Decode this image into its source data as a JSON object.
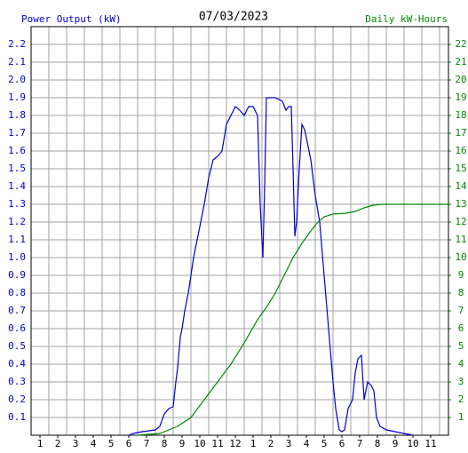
{
  "chart_data": {
    "type": "line",
    "title": "07/03/2023",
    "y_label": "Power Output (kW)",
    "y2_label": "Daily kW-Hours",
    "xlim": [
      0.5,
      24
    ],
    "xticks": [
      1,
      2,
      3,
      4,
      5,
      6,
      7,
      8,
      9,
      10,
      11,
      12,
      {
        "value": 13,
        "label": "1"
      },
      {
        "value": 14,
        "label": "2"
      },
      {
        "value": 15,
        "label": "3"
      },
      {
        "value": 16,
        "label": "4"
      },
      {
        "value": 17,
        "label": "5"
      },
      {
        "value": 18,
        "label": "6"
      },
      {
        "value": 19,
        "label": "7"
      },
      {
        "value": 20,
        "label": "8"
      },
      {
        "value": 21,
        "label": "9"
      },
      {
        "value": 22,
        "label": "10"
      },
      {
        "value": 23,
        "label": "11"
      }
    ],
    "ylim": [
      0,
      2.3
    ],
    "yticks": [
      0.1,
      0.2,
      0.3,
      0.4,
      0.5,
      0.6,
      0.7,
      0.8,
      0.9,
      {
        "value": 1,
        "label": "1.0"
      },
      1.1,
      1.2,
      1.3,
      1.4,
      1.5,
      1.6,
      1.7,
      1.8,
      1.9,
      {
        "value": 2,
        "label": "2.0"
      },
      2.1,
      2.2
    ],
    "y2lim": [
      0,
      23
    ],
    "y2ticks": [
      1,
      2,
      3,
      4,
      5,
      6,
      7,
      8,
      9,
      10,
      11,
      12,
      13,
      14,
      15,
      16,
      17,
      18,
      19,
      20,
      21,
      22
    ],
    "grid": true,
    "series": [
      {
        "color": "#0000cc",
        "x": [
          6.0,
          6.25,
          6.75,
          7.5,
          7.75,
          8.0,
          8.25,
          8.5,
          8.65,
          8.75,
          8.9,
          9.0,
          9.15,
          9.35,
          9.5,
          9.65,
          9.85,
          10.05,
          10.25,
          10.5,
          10.75,
          11.0,
          11.25,
          11.5,
          11.75,
          12.0,
          12.25,
          12.5,
          12.75,
          13.0,
          13.25,
          13.4,
          13.55,
          13.65,
          13.75,
          14.0,
          14.25,
          14.65,
          14.85,
          15.0,
          15.15,
          15.25,
          15.35,
          15.45,
          15.6,
          15.75,
          15.9,
          16.05,
          16.25,
          16.5,
          16.75,
          17.0,
          17.25,
          17.5,
          17.65,
          17.85,
          18.0,
          18.15,
          18.35,
          18.6,
          18.75,
          18.9,
          19.1,
          19.25,
          19.45,
          19.65,
          19.8,
          19.95,
          20.15,
          20.5,
          21.0,
          21.5,
          22.0
        ],
        "values": [
          0,
          0.01,
          0.02,
          0.03,
          0.05,
          0.12,
          0.15,
          0.16,
          0.3,
          0.38,
          0.55,
          0.6,
          0.7,
          0.8,
          0.9,
          1.0,
          1.1,
          1.2,
          1.3,
          1.45,
          1.55,
          1.57,
          1.6,
          1.75,
          1.8,
          1.85,
          1.83,
          1.8,
          1.85,
          1.85,
          1.8,
          1.3,
          1.0,
          1.4,
          1.9,
          1.9,
          1.9,
          1.88,
          1.83,
          1.85,
          1.85,
          1.5,
          1.12,
          1.2,
          1.5,
          1.75,
          1.72,
          1.65,
          1.55,
          1.35,
          1.2,
          0.9,
          0.6,
          0.3,
          0.15,
          0.03,
          0.02,
          0.03,
          0.15,
          0.2,
          0.35,
          0.43,
          0.45,
          0.2,
          0.3,
          0.28,
          0.25,
          0.1,
          0.05,
          0.03,
          0.02,
          0.01,
          0
        ]
      },
      {
        "color": "#008800",
        "axis": "y2",
        "x": [
          6.5,
          7.75,
          8.75,
          9.5,
          10.25,
          11.0,
          11.75,
          12.5,
          13.25,
          13.75,
          14.25,
          14.75,
          15.25,
          15.75,
          16.25,
          16.65,
          17.0,
          17.5,
          18.25,
          18.75,
          19.25,
          19.75,
          20.25,
          24.0
        ],
        "values": [
          0,
          0.1,
          0.5,
          1.0,
          2.0,
          3.0,
          4.0,
          5.2,
          6.5,
          7.2,
          8.0,
          9.0,
          10.0,
          10.8,
          11.5,
          12.0,
          12.3,
          12.45,
          12.5,
          12.6,
          12.8,
          12.95,
          13.0,
          13.0
        ]
      }
    ]
  }
}
